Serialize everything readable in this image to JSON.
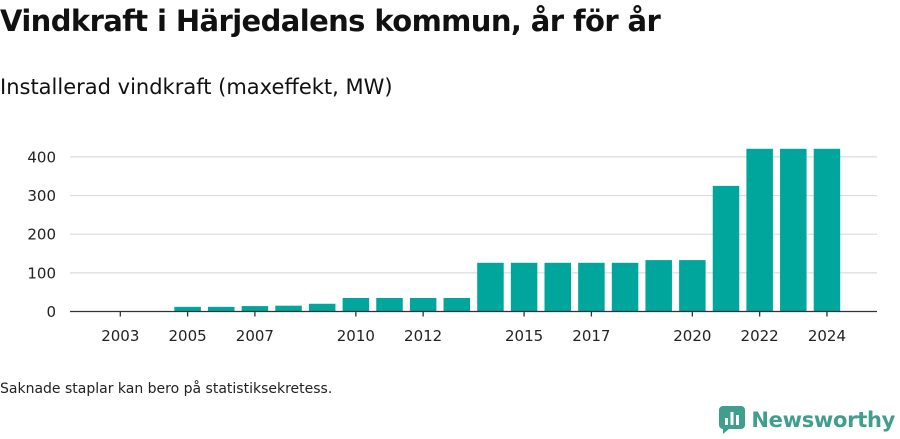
{
  "title": "Vindkraft i Härjedalens kommun, år för år",
  "subtitle": "Installerad vindkraft (maxeffekt, MW)",
  "footnote": "Saknade staplar kan bero på statistiksekretess.",
  "brand": "Newsworthy",
  "colors": {
    "bar": "#00a69c",
    "grid": "#dcdcdc",
    "axis": "#333333",
    "brand": "#3f9e8e"
  },
  "chart_data": {
    "type": "bar",
    "categories": [
      "2003",
      "2004",
      "2005",
      "2006",
      "2007",
      "2008",
      "2009",
      "2010",
      "2011",
      "2012",
      "2013",
      "2014",
      "2015",
      "2016",
      "2017",
      "2018",
      "2019",
      "2020",
      "2021",
      "2022",
      "2023",
      "2024"
    ],
    "values": [
      0,
      0,
      12,
      12,
      14,
      15,
      20,
      35,
      35,
      35,
      35,
      126,
      126,
      126,
      126,
      126,
      133,
      133,
      325,
      421,
      421,
      421
    ],
    "x_tick_labels": [
      "2003",
      "2005",
      "2007",
      "2010",
      "2012",
      "2015",
      "2017",
      "2020",
      "2022",
      "2024"
    ],
    "y_ticks": [
      0,
      100,
      200,
      300,
      400
    ],
    "ylim": [
      0,
      430
    ],
    "title": "Vindkraft i Härjedalens kommun, år för år",
    "ylabel": "Installerad vindkraft (maxeffekt, MW)",
    "xlabel": "",
    "grid": true
  }
}
